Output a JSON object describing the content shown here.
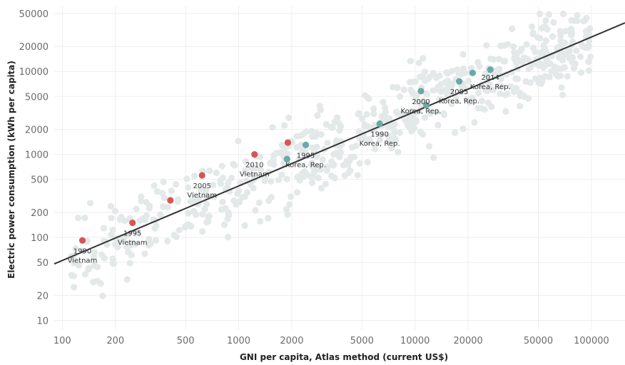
{
  "chart_data": {
    "type": "scatter",
    "title": "",
    "xlabel": "GNI per capita, Atlas method (current US$)",
    "ylabel": "Electric power consumption (kWh per capita)",
    "x_scale": "log",
    "y_scale": "log",
    "xlim": [
      90,
      155000
    ],
    "ylim": [
      7.8,
      62000
    ],
    "grid": true,
    "x_ticks": [
      100,
      200,
      500,
      1000,
      2000,
      5000,
      10000,
      20000,
      50000,
      100000
    ],
    "x_tick_labels": [
      "100",
      "200",
      "500",
      "1000",
      "2000",
      "5000",
      "10000",
      "20000",
      "50000",
      "100000"
    ],
    "y_ticks": [
      10,
      20,
      50,
      100,
      200,
      500,
      1000,
      2000,
      5000,
      10000,
      20000,
      50000
    ],
    "y_tick_labels": [
      "10",
      "20",
      "50",
      "100",
      "200",
      "500",
      "1000",
      "2000",
      "5000",
      "10000",
      "20000",
      "50000"
    ],
    "colors": {
      "background_points": "#e3e8e8",
      "vietnam": "#d95457",
      "korea": "#6aa9a7",
      "trend": "#333333",
      "grid": "#eeeeee"
    },
    "trendline": {
      "x": [
        90,
        155000
      ],
      "y": [
        48,
        38500
      ]
    },
    "series": [
      {
        "name": "Vietnam",
        "color": "#d95457",
        "points": [
          {
            "x": 130,
            "y": 92
          },
          {
            "x": 250,
            "y": 150
          },
          {
            "x": 410,
            "y": 280
          },
          {
            "x": 620,
            "y": 560
          },
          {
            "x": 1230,
            "y": 1000
          },
          {
            "x": 1900,
            "y": 1390
          }
        ]
      },
      {
        "name": "Korea, Rep.",
        "color": "#6aa9a7",
        "points": [
          {
            "x": 1880,
            "y": 880
          },
          {
            "x": 2400,
            "y": 1300
          },
          {
            "x": 6300,
            "y": 2350
          },
          {
            "x": 10800,
            "y": 5800
          },
          {
            "x": 11600,
            "y": 3900
          },
          {
            "x": 17800,
            "y": 7600
          },
          {
            "x": 21200,
            "y": 9600
          },
          {
            "x": 26700,
            "y": 10500
          }
        ]
      }
    ],
    "annotations": [
      {
        "year": "1990",
        "name": "Vietnam",
        "x": 130,
        "y": 92,
        "dy": 18
      },
      {
        "year": "1995",
        "name": "Vietnam",
        "x": 250,
        "y": 150,
        "dy": 18
      },
      {
        "year": "2005",
        "name": "Vietnam",
        "x": 620,
        "y": 560,
        "dy": 18
      },
      {
        "year": "2010",
        "name": "Vietnam",
        "x": 1230,
        "y": 1000,
        "dy": 18
      },
      {
        "year": "1995",
        "name": "Korea, Rep.",
        "x": 2400,
        "y": 1300,
        "dy": 18
      },
      {
        "year": "1990",
        "name": "Korea, Rep.",
        "x": 6300,
        "y": 2350,
        "dy": 18
      },
      {
        "year": "2000",
        "name": "Korea, Rep.",
        "x": 10800,
        "y": 5800,
        "dy": 18
      },
      {
        "year": "2005",
        "name": "Korea, Rep.",
        "x": 17800,
        "y": 7600,
        "dy": 18
      },
      {
        "year": "2014",
        "name": "Korea, Rep.",
        "x": 26700,
        "y": 10500,
        "dy": 14
      }
    ],
    "background_count": 650
  }
}
